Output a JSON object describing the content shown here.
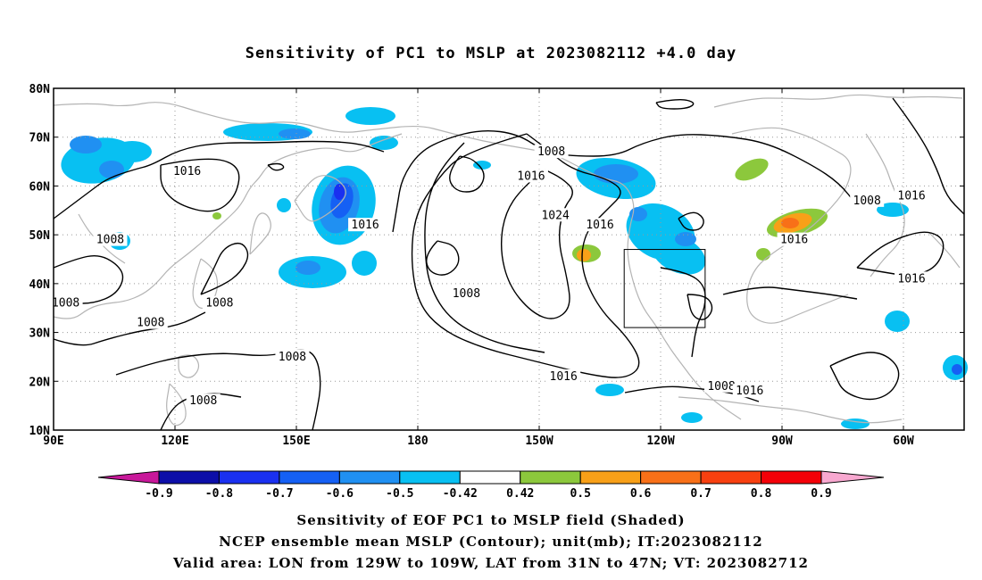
{
  "title": "Sensitivity of PC1 to MSLP at 2023082112 +4.0 day",
  "lat_labels": [
    "80N",
    "70N",
    "60N",
    "50N",
    "40N",
    "30N",
    "20N",
    "10N"
  ],
  "lon_labels": [
    "90E",
    "120E",
    "150E",
    "180",
    "150W",
    "120W",
    "90W",
    "60W"
  ],
  "contour_labels": [
    {
      "text": "1008",
      "lon": -147,
      "lat": 67
    },
    {
      "text": "1016",
      "lon": 123,
      "lat": 63
    },
    {
      "text": "1016",
      "lon": -152,
      "lat": 62
    },
    {
      "text": "1024",
      "lon": -146,
      "lat": 54
    },
    {
      "text": "1016",
      "lon": -135,
      "lat": 52
    },
    {
      "text": "1016",
      "lon": 167,
      "lat": 52
    },
    {
      "text": "1008",
      "lon": 104,
      "lat": 49
    },
    {
      "text": "1016",
      "lon": -87,
      "lat": 49
    },
    {
      "text": "1008",
      "lon": -69,
      "lat": 57
    },
    {
      "text": "1016",
      "lon": -58,
      "lat": 58
    },
    {
      "text": "1016",
      "lon": -58,
      "lat": 41
    },
    {
      "text": "1008",
      "lon": -168,
      "lat": 38
    },
    {
      "text": "1008",
      "lon": 93,
      "lat": 36
    },
    {
      "text": "1008",
      "lon": 131,
      "lat": 36
    },
    {
      "text": "1008",
      "lon": 114,
      "lat": 32
    },
    {
      "text": "1008",
      "lon": 149,
      "lat": 25
    },
    {
      "text": "1016",
      "lon": -144,
      "lat": 21
    },
    {
      "text": "1008",
      "lon": -105,
      "lat": 19
    },
    {
      "text": "1016",
      "lon": -98,
      "lat": 18
    },
    {
      "text": "1008",
      "lon": 127,
      "lat": 16
    }
  ],
  "colorbar": {
    "labels": [
      "-0.9",
      "-0.8",
      "-0.7",
      "-0.6",
      "-0.5",
      "-0.42",
      "0.42",
      "0.5",
      "0.6",
      "0.7",
      "0.8",
      "0.9"
    ],
    "colors": [
      "#c8189a",
      "#0c0ea8",
      "#1a30f0",
      "#1560f4",
      "#2090f2",
      "#08c0f2",
      "#ffffff",
      "#8cc83c",
      "#f8a018",
      "#f87018",
      "#f84010",
      "#f40008",
      "#f8a8d0"
    ]
  },
  "captions": [
    "Sensitivity of EOF PC1 to MSLP field (Shaded)",
    "NCEP ensemble mean MSLP (Contour); unit(mb); IT:2023082112",
    "Valid area: LON from 129W to 109W, LAT from 31N to 47N; VT: 2023082712"
  ]
}
